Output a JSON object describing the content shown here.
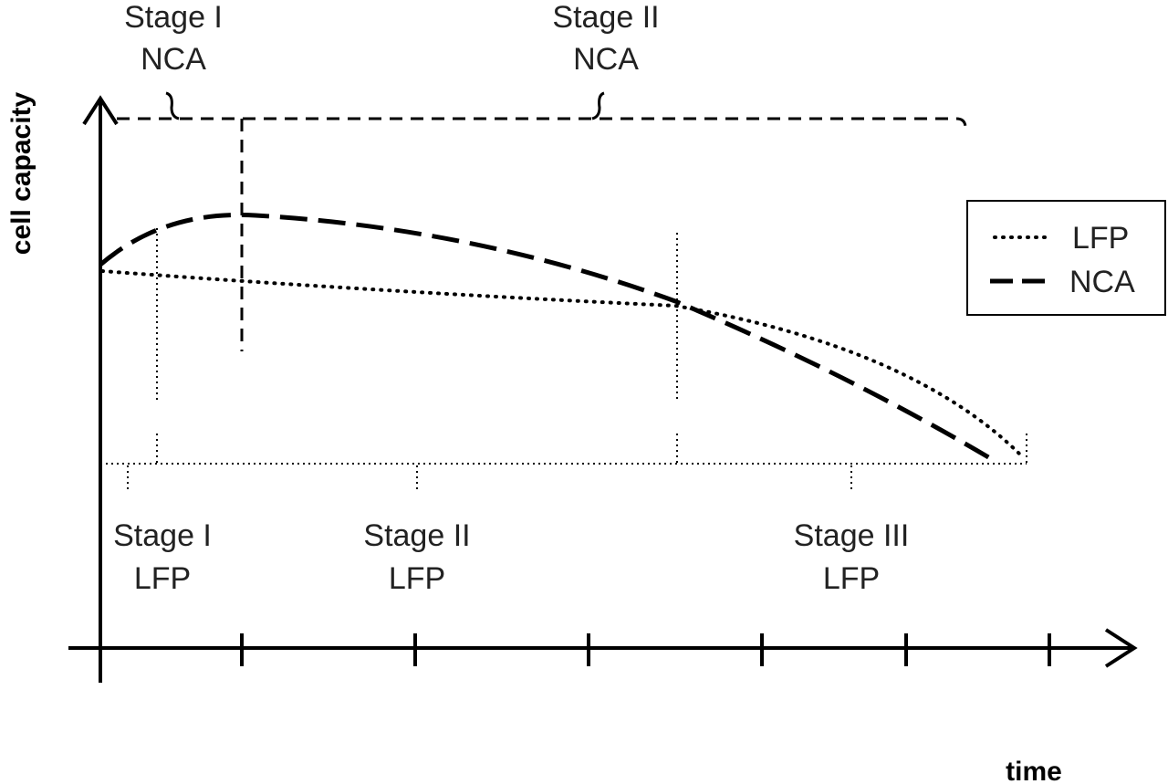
{
  "axes": {
    "y_label": "cell capacity",
    "x_label": "time"
  },
  "legend": [
    {
      "label": "LFP"
    },
    {
      "label": "NCA"
    }
  ],
  "nca_stages": [
    {
      "line1": "Stage I",
      "line2": "NCA"
    },
    {
      "line1": "Stage II",
      "line2": "NCA"
    }
  ],
  "lfp_stages": [
    {
      "line1": "Stage I",
      "line2": "LFP"
    },
    {
      "line1": "Stage II",
      "line2": "LFP"
    },
    {
      "line1": "Stage III",
      "line2": "LFP"
    }
  ]
}
